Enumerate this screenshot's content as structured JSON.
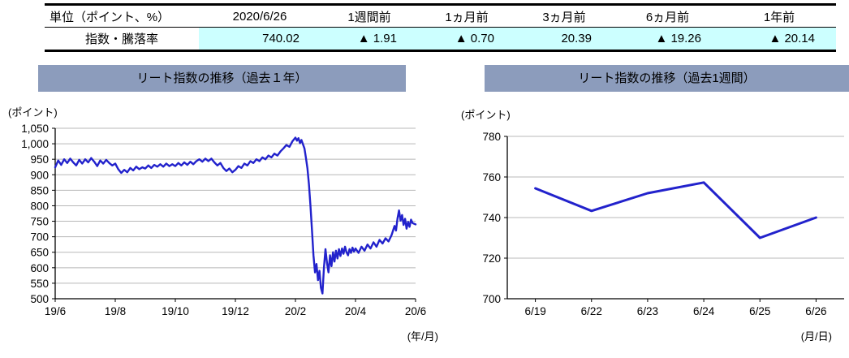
{
  "colors": {
    "title_bg": "#8C9CBC",
    "highlight": "#CCFFFF"
  },
  "table": {
    "headers": [
      "単位（ポイント、%）",
      "2020/6/26",
      "1週間前",
      "1ヵ月前",
      "3ヵ月前",
      "6ヵ月前",
      "1年前"
    ],
    "row": [
      "指数・騰落率",
      "740.02",
      "▲ 1.91",
      "▲ 0.70",
      "20.39",
      "▲ 19.26",
      "▲ 20.14"
    ]
  },
  "chart_data": [
    {
      "type": "line",
      "title": "リート指数の推移（過去１年）",
      "y_unit_label": "(ポイント)",
      "x_unit_label": "(年/月)",
      "ylim": [
        500,
        1050
      ],
      "yticks": [
        500,
        550,
        600,
        650,
        700,
        750,
        800,
        850,
        900,
        950,
        1000,
        1050
      ],
      "ytick_labels": [
        "500",
        "550",
        "600",
        "650",
        "700",
        "750",
        "800",
        "850",
        "900",
        "950",
        "1,000",
        "1,050"
      ],
      "xlim": [
        0,
        12
      ],
      "xticks": [
        {
          "x": 0,
          "label": "19/6"
        },
        {
          "x": 2,
          "label": "19/8"
        },
        {
          "x": 4,
          "label": "19/10"
        },
        {
          "x": 6,
          "label": "19/12"
        },
        {
          "x": 8,
          "label": "20/2"
        },
        {
          "x": 10,
          "label": "20/4"
        },
        {
          "x": 12,
          "label": "20/6"
        }
      ],
      "grid": "horizontal",
      "legend": "none",
      "line_color": "#2222CC",
      "series": [
        {
          "name": "リート指数",
          "points": [
            [
              0,
              924
            ],
            [
              0.1,
              946
            ],
            [
              0.2,
              932
            ],
            [
              0.3,
              950
            ],
            [
              0.4,
              938
            ],
            [
              0.5,
              952
            ],
            [
              0.6,
              940
            ],
            [
              0.7,
              930
            ],
            [
              0.8,
              948
            ],
            [
              0.9,
              936
            ],
            [
              1.0,
              950
            ],
            [
              1.1,
              940
            ],
            [
              1.2,
              954
            ],
            [
              1.3,
              942
            ],
            [
              1.4,
              928
            ],
            [
              1.5,
              946
            ],
            [
              1.6,
              936
            ],
            [
              1.7,
              948
            ],
            [
              1.8,
              938
            ],
            [
              1.9,
              930
            ],
            [
              2.0,
              936
            ],
            [
              2.1,
              918
            ],
            [
              2.2,
              906
            ],
            [
              2.3,
              916
            ],
            [
              2.4,
              908
            ],
            [
              2.5,
              922
            ],
            [
              2.6,
              914
            ],
            [
              2.7,
              926
            ],
            [
              2.8,
              918
            ],
            [
              2.9,
              924
            ],
            [
              3.0,
              920
            ],
            [
              3.1,
              930
            ],
            [
              3.2,
              922
            ],
            [
              3.3,
              932
            ],
            [
              3.4,
              926
            ],
            [
              3.5,
              934
            ],
            [
              3.6,
              926
            ],
            [
              3.7,
              936
            ],
            [
              3.8,
              928
            ],
            [
              3.9,
              934
            ],
            [
              4.0,
              928
            ],
            [
              4.1,
              938
            ],
            [
              4.2,
              930
            ],
            [
              4.3,
              940
            ],
            [
              4.4,
              932
            ],
            [
              4.5,
              942
            ],
            [
              4.6,
              934
            ],
            [
              4.7,
              944
            ],
            [
              4.8,
              950
            ],
            [
              4.9,
              942
            ],
            [
              5.0,
              952
            ],
            [
              5.1,
              944
            ],
            [
              5.2,
              952
            ],
            [
              5.3,
              940
            ],
            [
              5.4,
              930
            ],
            [
              5.5,
              938
            ],
            [
              5.6,
              922
            ],
            [
              5.7,
              912
            ],
            [
              5.8,
              920
            ],
            [
              5.9,
              908
            ],
            [
              6.0,
              916
            ],
            [
              6.1,
              928
            ],
            [
              6.2,
              922
            ],
            [
              6.3,
              936
            ],
            [
              6.4,
              930
            ],
            [
              6.5,
              944
            ],
            [
              6.6,
              938
            ],
            [
              6.7,
              950
            ],
            [
              6.8,
              944
            ],
            [
              6.9,
              956
            ],
            [
              7.0,
              950
            ],
            [
              7.1,
              962
            ],
            [
              7.2,
              956
            ],
            [
              7.3,
              968
            ],
            [
              7.4,
              962
            ],
            [
              7.5,
              975
            ],
            [
              7.6,
              985
            ],
            [
              7.7,
              996
            ],
            [
              7.8,
              990
            ],
            [
              7.9,
              1008
            ],
            [
              8.0,
              1020
            ],
            [
              8.05,
              1010
            ],
            [
              8.1,
              1018
            ],
            [
              8.15,
              1002
            ],
            [
              8.2,
              1012
            ],
            [
              8.3,
              985
            ],
            [
              8.35,
              955
            ],
            [
              8.4,
              920
            ],
            [
              8.45,
              870
            ],
            [
              8.5,
              800
            ],
            [
              8.55,
              720
            ],
            [
              8.6,
              640
            ],
            [
              8.65,
              585
            ],
            [
              8.7,
              612
            ],
            [
              8.75,
              560
            ],
            [
              8.8,
              590
            ],
            [
              8.85,
              535
            ],
            [
              8.9,
              517
            ],
            [
              8.95,
              600
            ],
            [
              9.0,
              660
            ],
            [
              9.05,
              615
            ],
            [
              9.1,
              585
            ],
            [
              9.15,
              640
            ],
            [
              9.2,
              605
            ],
            [
              9.25,
              650
            ],
            [
              9.3,
              620
            ],
            [
              9.35,
              655
            ],
            [
              9.4,
              630
            ],
            [
              9.45,
              660
            ],
            [
              9.5,
              638
            ],
            [
              9.55,
              662
            ],
            [
              9.6,
              645
            ],
            [
              9.65,
              668
            ],
            [
              9.7,
              650
            ],
            [
              9.75,
              640
            ],
            [
              9.8,
              660
            ],
            [
              9.85,
              648
            ],
            [
              9.9,
              665
            ],
            [
              9.95,
              652
            ],
            [
              10.0,
              662
            ],
            [
              10.1,
              648
            ],
            [
              10.2,
              668
            ],
            [
              10.3,
              655
            ],
            [
              10.4,
              675
            ],
            [
              10.5,
              662
            ],
            [
              10.6,
              682
            ],
            [
              10.7,
              668
            ],
            [
              10.8,
              690
            ],
            [
              10.9,
              678
            ],
            [
              11.0,
              695
            ],
            [
              11.1,
              685
            ],
            [
              11.2,
              705
            ],
            [
              11.3,
              735
            ],
            [
              11.35,
              720
            ],
            [
              11.4,
              760
            ],
            [
              11.45,
              785
            ],
            [
              11.5,
              752
            ],
            [
              11.55,
              770
            ],
            [
              11.6,
              738
            ],
            [
              11.65,
              758
            ],
            [
              11.7,
              726
            ],
            [
              11.75,
              748
            ],
            [
              11.8,
              732
            ],
            [
              11.85,
              755
            ],
            [
              11.9,
              744
            ],
            [
              12.0,
              740
            ]
          ]
        }
      ]
    },
    {
      "type": "line",
      "title": "リート指数の推移（過去1週間）",
      "y_unit_label": "(ポイント)",
      "x_unit_label": "(月/日)",
      "ylim": [
        700,
        780
      ],
      "yticks": [
        700,
        720,
        740,
        760,
        780
      ],
      "ytick_labels": [
        "700",
        "720",
        "740",
        "760",
        "780"
      ],
      "xlim": [
        -0.5,
        5.5
      ],
      "xticks": [
        {
          "x": 0,
          "label": "6/19"
        },
        {
          "x": 1,
          "label": "6/22"
        },
        {
          "x": 2,
          "label": "6/23"
        },
        {
          "x": 3,
          "label": "6/24"
        },
        {
          "x": 4,
          "label": "6/25"
        },
        {
          "x": 5,
          "label": "6/26"
        }
      ],
      "grid": "horizontal",
      "legend": "none",
      "line_color": "#2222CC",
      "categories": [
        "6/19",
        "6/22",
        "6/23",
        "6/24",
        "6/25",
        "6/26"
      ],
      "values": [
        754.4,
        743.3,
        752.0,
        757.3,
        730.0,
        740.02
      ]
    }
  ]
}
